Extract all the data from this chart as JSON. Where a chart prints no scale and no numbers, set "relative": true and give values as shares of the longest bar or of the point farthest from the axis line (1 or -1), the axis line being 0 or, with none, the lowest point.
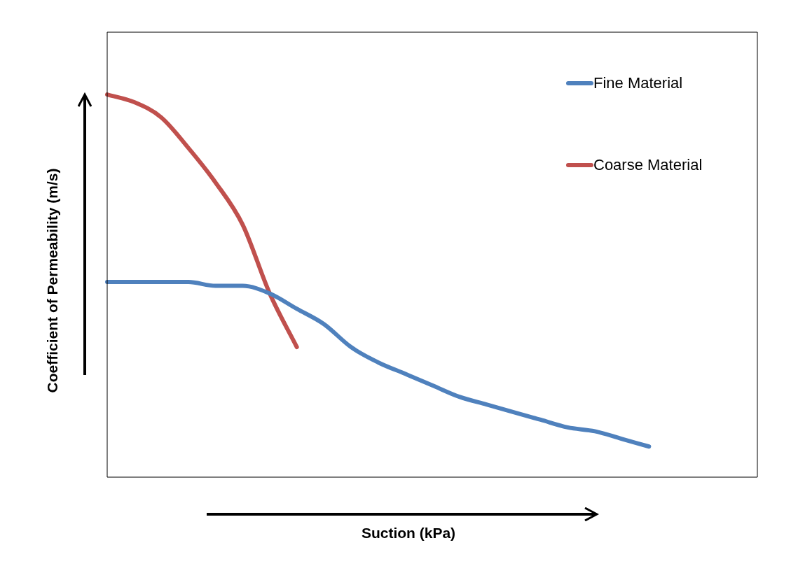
{
  "chart_data": {
    "type": "line",
    "xlabel": "Suction (kPa)",
    "ylabel": "Coefficient of Permeability (m/s)",
    "categories": [
      null,
      null,
      null,
      null,
      null,
      null,
      null,
      null,
      null,
      null,
      null,
      null,
      null,
      null,
      null,
      null,
      null,
      null,
      null,
      null,
      null,
      null,
      null,
      null,
      null
    ],
    "relative": true,
    "legend": "top right",
    "marker": "none",
    "series": [
      {
        "name": "Fine Material",
        "color": "#4f81bd",
        "values": [
          0.51,
          0.51,
          0.51,
          0.51,
          0.5,
          0.5,
          0.48,
          0.44,
          0.4,
          0.34,
          0.3,
          0.27,
          0.24,
          0.21,
          0.19,
          0.17,
          0.15,
          0.13,
          0.12,
          0.1,
          0.08,
          null,
          null,
          null,
          null
        ]
      },
      {
        "name": "Coarse Material",
        "color": "#c0504d",
        "values": [
          1,
          0.98,
          0.94,
          0.86,
          0.77,
          0.66,
          0.48,
          0.34,
          null,
          null,
          null,
          null,
          null,
          null,
          null,
          null,
          null,
          null,
          null,
          null,
          null,
          null,
          null,
          null,
          null
        ]
      }
    ]
  }
}
